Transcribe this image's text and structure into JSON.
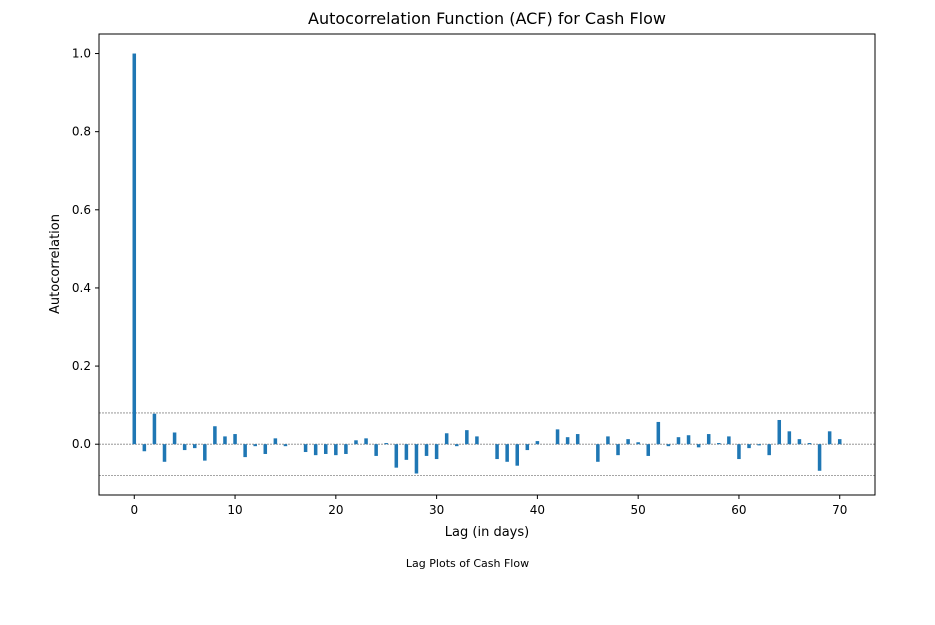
{
  "chart_data": {
    "type": "bar",
    "title": "Autocorrelation Function (ACF) for Cash Flow",
    "xlabel": "Lag (in days)",
    "ylabel": "Autocorrelation",
    "xlim": [
      -3.5,
      73.5
    ],
    "ylim": [
      -0.13,
      1.05
    ],
    "xticks": [
      0,
      10,
      20,
      30,
      40,
      50,
      60,
      70
    ],
    "xtick_labels": [
      "0",
      "10",
      "20",
      "30",
      "40",
      "50",
      "60",
      "70"
    ],
    "yticks": [
      0.0,
      0.2,
      0.4,
      0.6,
      0.8,
      1.0
    ],
    "ytick_labels": [
      "0.0",
      "0.2",
      "0.4",
      "0.6",
      "0.8",
      "1.0"
    ],
    "bar_color": "#1f77b4",
    "reference_lines": [
      0.08,
      0.0,
      -0.08
    ],
    "x": [
      0,
      1,
      2,
      3,
      4,
      5,
      6,
      7,
      8,
      9,
      10,
      11,
      12,
      13,
      14,
      15,
      16,
      17,
      18,
      19,
      20,
      21,
      22,
      23,
      24,
      25,
      26,
      27,
      28,
      29,
      30,
      31,
      32,
      33,
      34,
      35,
      36,
      37,
      38,
      39,
      40,
      41,
      42,
      43,
      44,
      45,
      46,
      47,
      48,
      49,
      50,
      51,
      52,
      53,
      54,
      55,
      56,
      57,
      58,
      59,
      60,
      61,
      62,
      63,
      64,
      65,
      66,
      67,
      68,
      69,
      70
    ],
    "values": [
      1.0,
      -0.018,
      0.078,
      -0.045,
      0.03,
      -0.015,
      -0.01,
      -0.042,
      0.046,
      0.02,
      0.026,
      -0.033,
      -0.005,
      -0.025,
      0.015,
      -0.005,
      0.0,
      -0.02,
      -0.028,
      -0.025,
      -0.028,
      -0.025,
      0.01,
      0.015,
      -0.03,
      0.003,
      -0.06,
      -0.04,
      -0.075,
      -0.03,
      -0.038,
      0.028,
      -0.005,
      0.036,
      0.02,
      0.0,
      -0.038,
      -0.045,
      -0.055,
      -0.015,
      0.008,
      0.0,
      0.038,
      0.018,
      0.026,
      0.0,
      -0.045,
      0.02,
      -0.028,
      0.013,
      0.005,
      -0.03,
      0.057,
      -0.005,
      0.018,
      0.023,
      -0.008,
      0.026,
      0.003,
      0.02,
      -0.038,
      -0.01,
      -0.003,
      -0.028,
      0.062,
      0.033,
      0.013,
      0.003,
      -0.068,
      0.033,
      0.013
    ],
    "grid": false,
    "legend": "none"
  },
  "caption": "Lag Plots of Cash Flow"
}
